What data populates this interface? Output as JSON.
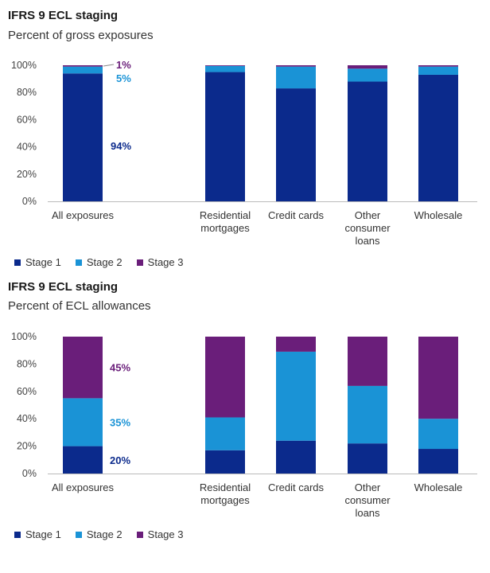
{
  "charts": [
    {
      "title": "IFRS 9 ECL staging",
      "subtitle": "Percent of gross exposures"
    },
    {
      "title": "IFRS 9 ECL staging",
      "subtitle": "Percent of ECL allowances"
    }
  ],
  "colors": {
    "stage1": "#0b2a8c",
    "stage2": "#1a93d6",
    "stage3": "#6a1e7a",
    "axis": "#bbbbbb",
    "tick": "#444444"
  },
  "chart_data": [
    {
      "type": "bar",
      "stacked": true,
      "title": "IFRS 9 ECL staging",
      "subtitle": "Percent of gross exposures",
      "categories": [
        "All exposures",
        "Residential mortgages",
        "Credit cards",
        "Other consumer loans",
        "Wholesale"
      ],
      "series": [
        {
          "name": "Stage 1",
          "values": [
            94,
            95,
            83,
            88,
            93
          ]
        },
        {
          "name": "Stage 2",
          "values": [
            5,
            4.5,
            16,
            9.5,
            6
          ]
        },
        {
          "name": "Stage 3",
          "values": [
            1,
            0.5,
            1,
            2.5,
            1
          ]
        }
      ],
      "ylim": [
        0,
        100
      ],
      "yticks": [
        "0%",
        "20%",
        "40%",
        "60%",
        "80%",
        "100%"
      ],
      "annotations": [
        "94%",
        "5%",
        "1%"
      ],
      "legend": "bottom-left"
    },
    {
      "type": "bar",
      "stacked": true,
      "title": "IFRS 9 ECL staging",
      "subtitle": "Percent of ECL allowances",
      "categories": [
        "All exposures",
        "Residential mortgages",
        "Credit cards",
        "Other consumer loans",
        "Wholesale"
      ],
      "series": [
        {
          "name": "Stage 1",
          "values": [
            20,
            17,
            24,
            22,
            18
          ]
        },
        {
          "name": "Stage 2",
          "values": [
            35,
            24,
            65,
            42,
            22
          ]
        },
        {
          "name": "Stage 3",
          "values": [
            45,
            59,
            11,
            36,
            60
          ]
        }
      ],
      "ylim": [
        0,
        100
      ],
      "yticks": [
        "0%",
        "20%",
        "40%",
        "60%",
        "80%",
        "100%"
      ],
      "annotations": [
        "20%",
        "35%",
        "45%"
      ],
      "legend": "bottom-left"
    }
  ]
}
